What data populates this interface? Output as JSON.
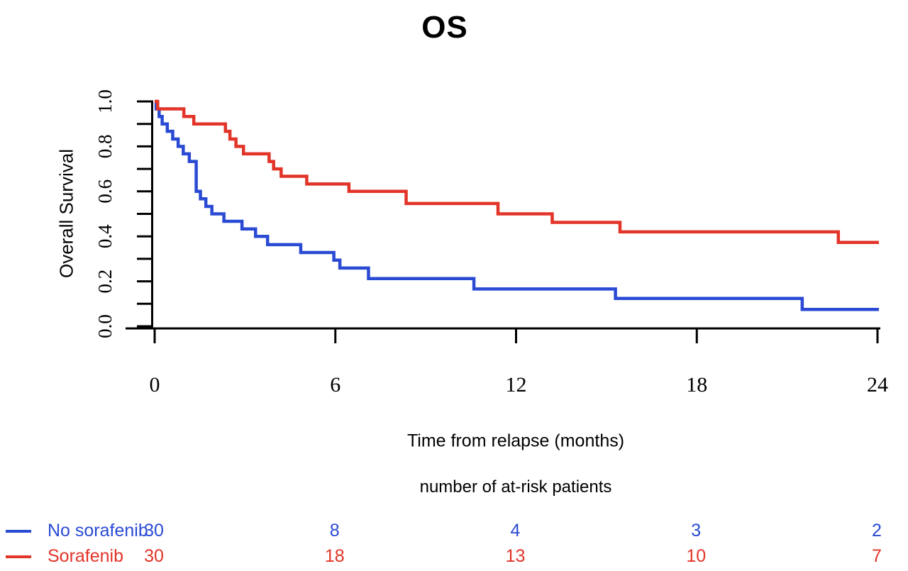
{
  "chart_data": {
    "type": "line",
    "subtype": "kaplan-meier-step",
    "title": "OS",
    "xlabel": "Time from relapse (months)",
    "ylabel": "Overall Survival",
    "xlim": [
      0,
      24
    ],
    "ylim": [
      0.0,
      1.0
    ],
    "x_ticks": [
      0,
      6,
      12,
      18,
      24
    ],
    "y_major_ticks": [
      0.0,
      0.2,
      0.4,
      0.6,
      0.8,
      1.0
    ],
    "y_major_tick_labels": [
      "0.0",
      "0.2",
      "0.4",
      "0.6",
      "0.8",
      "1.0"
    ],
    "y_minor_tick_step": 0.1,
    "grid": "off",
    "axis_color": "#000000",
    "series": [
      {
        "name": "No sorafenib",
        "color": "#2a4ad4",
        "start": [
          0,
          1.0
        ],
        "steps": [
          [
            0.05,
            0.967
          ],
          [
            0.15,
            0.933
          ],
          [
            0.25,
            0.9
          ],
          [
            0.42,
            0.867
          ],
          [
            0.6,
            0.833
          ],
          [
            0.78,
            0.8
          ],
          [
            0.95,
            0.767
          ],
          [
            1.15,
            0.733
          ],
          [
            1.38,
            0.6
          ],
          [
            1.52,
            0.567
          ],
          [
            1.7,
            0.533
          ],
          [
            1.9,
            0.5
          ],
          [
            2.3,
            0.467
          ],
          [
            2.9,
            0.433
          ],
          [
            3.35,
            0.4
          ],
          [
            3.75,
            0.363
          ],
          [
            4.85,
            0.328
          ],
          [
            5.95,
            0.294
          ],
          [
            6.15,
            0.259
          ],
          [
            7.1,
            0.212
          ],
          [
            10.6,
            0.166
          ],
          [
            15.3,
            0.124
          ],
          [
            21.5,
            0.075
          ]
        ],
        "end_time": 24
      },
      {
        "name": "Sorafenib",
        "color": "#e23428",
        "start": [
          0,
          1.0
        ],
        "steps": [
          [
            0.1,
            0.967
          ],
          [
            0.97,
            0.933
          ],
          [
            1.3,
            0.9
          ],
          [
            2.35,
            0.867
          ],
          [
            2.5,
            0.833
          ],
          [
            2.7,
            0.8
          ],
          [
            2.95,
            0.767
          ],
          [
            3.8,
            0.733
          ],
          [
            3.95,
            0.7
          ],
          [
            4.2,
            0.667
          ],
          [
            5.05,
            0.633
          ],
          [
            6.45,
            0.6
          ],
          [
            8.35,
            0.546
          ],
          [
            11.4,
            0.5
          ],
          [
            13.2,
            0.462
          ],
          [
            15.45,
            0.42
          ],
          [
            22.7,
            0.373
          ]
        ],
        "end_time": 24
      }
    ],
    "at_risk": {
      "header": "number of at-risk patients",
      "times": [
        0,
        6,
        12,
        18,
        24
      ],
      "rows": [
        {
          "name": "No sorafenib",
          "color": "#2a4ad4",
          "counts": [
            "30",
            "8",
            "4",
            "3",
            "2"
          ]
        },
        {
          "name": "Sorafenib",
          "color": "#e23428",
          "counts": [
            "30",
            "18",
            "13",
            "10",
            "7"
          ]
        }
      ]
    }
  }
}
